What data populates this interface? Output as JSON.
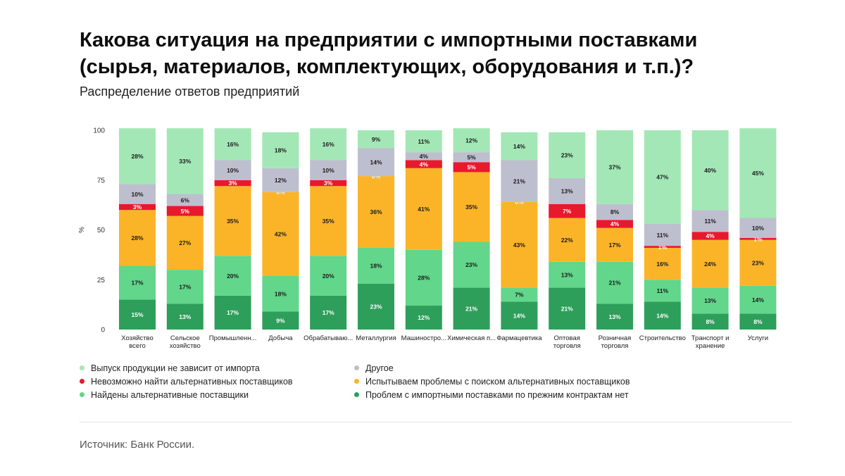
{
  "title": "Какова ситуация на предприятии с импортными поставками (сырья, материалов, комплектующих, оборудования и т.п.)?",
  "subtitle": "Распределение ответов предприятий",
  "source": "Источник: Банк России.",
  "chart_data": {
    "type": "bar",
    "stacked": true,
    "ylabel": "%",
    "ylim": [
      0,
      100
    ],
    "yticks": [
      0,
      25,
      50,
      75,
      100
    ],
    "grid": false,
    "legend_position": "bottom",
    "categories": [
      [
        "Хозяйство",
        "всего"
      ],
      [
        "Сельское",
        "хозяйство"
      ],
      [
        "Промышленн..."
      ],
      [
        "Добыча"
      ],
      [
        "Обрабатываю..."
      ],
      [
        "Металлургия"
      ],
      [
        "Машиностро..."
      ],
      [
        "Химическая п..."
      ],
      [
        "Фармацевтика"
      ],
      [
        "Оптовая",
        "торговля"
      ],
      [
        "Розничная",
        "торговля"
      ],
      [
        "Строительство"
      ],
      [
        "Транспорт и",
        "хранение"
      ],
      [
        "Услуги"
      ]
    ],
    "series": [
      {
        "name": "Проблем с импортными поставками по прежним контрактам нет",
        "color": "#2e9e5b",
        "label_color": "#ffffff",
        "values": [
          15,
          13,
          17,
          9,
          17,
          23,
          12,
          21,
          14,
          21,
          13,
          14,
          8,
          8
        ]
      },
      {
        "name": "Найдены альтернативные поставщики",
        "color": "#62d68a",
        "label_color": "#1a1a1a",
        "values": [
          17,
          17,
          20,
          18,
          20,
          18,
          28,
          23,
          7,
          13,
          21,
          11,
          13,
          14
        ]
      },
      {
        "name": "Испытываем проблемы с поиском альтернативных поставщиков",
        "color": "#fbb427",
        "label_color": "#1a1a1a",
        "values": [
          28,
          27,
          35,
          42,
          35,
          36,
          41,
          35,
          43,
          22,
          17,
          16,
          24,
          23
        ]
      },
      {
        "name": "Невозможно найти альтернативных поставщиков",
        "color": "#e8192c",
        "label_color": "#ffffff",
        "values": [
          3,
          5,
          3,
          0,
          3,
          0,
          4,
          5,
          0,
          7,
          4,
          1,
          4,
          1
        ]
      },
      {
        "name": "Другое",
        "color": "#bdbfcf",
        "label_color": "#1a1a1a",
        "values": [
          10,
          6,
          10,
          12,
          10,
          14,
          4,
          5,
          21,
          13,
          8,
          11,
          11,
          10
        ]
      },
      {
        "name": "Выпуск продукции не зависит от импорта",
        "color": "#a4e7b6",
        "label_color": "#1a1a1a",
        "values": [
          28,
          33,
          16,
          18,
          16,
          9,
          11,
          12,
          14,
          23,
          37,
          47,
          40,
          45
        ]
      }
    ]
  },
  "legend": [
    {
      "label": "Выпуск продукции не зависит от импорта",
      "color": "#a4e7b6"
    },
    {
      "label": "Другое",
      "color": "#bdbfcf"
    },
    {
      "label": "Невозможно найти альтернативных поставщиков",
      "color": "#e8192c"
    },
    {
      "label": "Испытываем проблемы с поиском альтернативных поставщиков",
      "color": "#fbb427"
    },
    {
      "label": "Найдены альтернативные поставщики",
      "color": "#62d68a"
    },
    {
      "label": "Проблем с импортными поставками по прежним контрактам нет",
      "color": "#2e9e5b"
    }
  ]
}
